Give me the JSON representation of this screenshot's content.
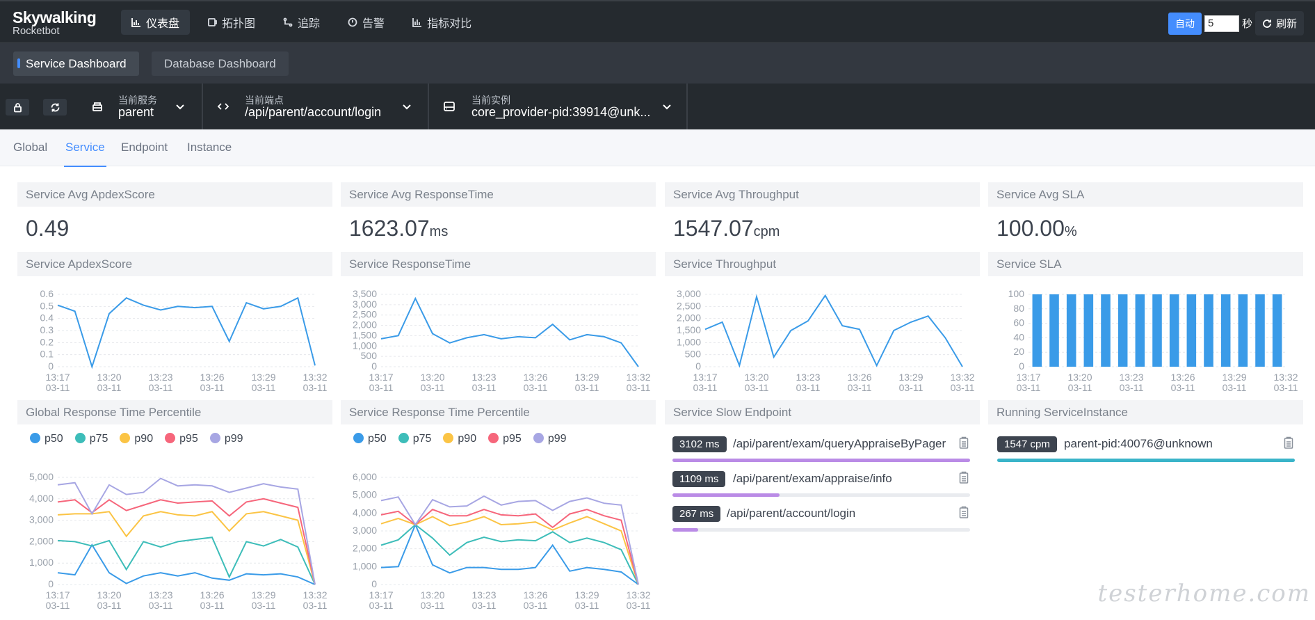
{
  "app": {
    "name": "Skywalking",
    "sub": "Rocketbot"
  },
  "nav": [
    {
      "label": "仪表盘",
      "icon": "dashboard-icon",
      "active": true
    },
    {
      "label": "拓扑图",
      "icon": "topology-icon"
    },
    {
      "label": "追踪",
      "icon": "trace-icon"
    },
    {
      "label": "告警",
      "icon": "alarm-icon"
    },
    {
      "label": "指标对比",
      "icon": "compare-icon"
    }
  ],
  "topright": {
    "auto_label": "自动",
    "interval": "5",
    "unit": "秒",
    "refresh_label": "刷新"
  },
  "dashboards": [
    "Service Dashboard",
    "Database Dashboard"
  ],
  "selectors": {
    "service": {
      "label": "当前服务",
      "value": "parent"
    },
    "endpoint": {
      "label": "当前端点",
      "value": "/api/parent/account/login"
    },
    "instance": {
      "label": "当前实例",
      "value": "core_provider-pid:39914@unk..."
    }
  },
  "tabs": [
    "Global",
    "Service",
    "Endpoint",
    "Instance"
  ],
  "active_tab": "Service",
  "stats": [
    {
      "title": "Service Avg ApdexScore",
      "value": "0.49",
      "unit": ""
    },
    {
      "title": "Service Avg ResponseTime",
      "value": "1623.07",
      "unit": "ms"
    },
    {
      "title": "Service Avg Throughput",
      "value": "1547.07",
      "unit": "cpm"
    },
    {
      "title": "Service Avg SLA",
      "value": "100.00",
      "unit": "%"
    }
  ],
  "chart_titles": [
    "Service ApdexScore",
    "Service ResponseTime",
    "Service Throughput",
    "Service SLA",
    "Global Response Time Percentile",
    "Service Response Time Percentile",
    "Service Slow Endpoint",
    "Running ServiceInstance"
  ],
  "time_labels": [
    "13:17",
    "13:20",
    "13:23",
    "13:26",
    "13:29",
    "13:32"
  ],
  "date_label": "03-11",
  "legend": [
    {
      "name": "p50",
      "color": "#3a9be8"
    },
    {
      "name": "p75",
      "color": "#3dbdb9"
    },
    {
      "name": "p90",
      "color": "#fbc445"
    },
    {
      "name": "p95",
      "color": "#f6667b"
    },
    {
      "name": "p99",
      "color": "#a7a6e3"
    }
  ],
  "chart_data": [
    {
      "type": "line",
      "title": "Service ApdexScore",
      "ylim": [
        0,
        0.6
      ],
      "yticks": [
        "0.6",
        "0.5",
        "0.4",
        "0.3",
        "0.2",
        "0.1",
        "0"
      ],
      "series": [
        {
          "color": "#3a9be8",
          "values": [
            0.51,
            0.46,
            0.0,
            0.44,
            0.57,
            0.51,
            0.47,
            0.5,
            0.49,
            0.5,
            0.21,
            0.53,
            0.48,
            0.5,
            0.57,
            0.01
          ]
        }
      ]
    },
    {
      "type": "line",
      "title": "Service ResponseTime",
      "ylim": [
        0,
        3500
      ],
      "yticks": [
        "3,500",
        "3,000",
        "2,500",
        "2,000",
        "1,500",
        "1,000",
        "500",
        "0"
      ],
      "series": [
        {
          "color": "#3a9be8",
          "values": [
            1350,
            1500,
            3300,
            1600,
            1150,
            1400,
            1550,
            1350,
            1450,
            1400,
            2050,
            1300,
            1550,
            1450,
            1150,
            0
          ]
        }
      ]
    },
    {
      "type": "line",
      "title": "Service Throughput",
      "ylim": [
        0,
        3000
      ],
      "yticks": [
        "3,000",
        "2,500",
        "2,000",
        "1,500",
        "1,000",
        "500",
        "0"
      ],
      "series": [
        {
          "color": "#3a9be8",
          "values": [
            1550,
            1850,
            50,
            2900,
            400,
            1500,
            1900,
            2950,
            1700,
            1550,
            50,
            1500,
            1850,
            2100,
            1200,
            0
          ]
        }
      ]
    },
    {
      "type": "bar",
      "title": "Service SLA",
      "ylim": [
        0,
        100
      ],
      "yticks": [
        "100",
        "80",
        "60",
        "40",
        "20",
        "0"
      ],
      "series": [
        {
          "color": "#3a9be8",
          "values": [
            100,
            100,
            100,
            100,
            100,
            100,
            100,
            100,
            100,
            100,
            100,
            100,
            100,
            100,
            100
          ]
        }
      ]
    },
    {
      "type": "line",
      "title": "Global Response Time Percentile",
      "ylim": [
        0,
        5000
      ],
      "yticks": [
        "5,000",
        "4,000",
        "3,000",
        "2,000",
        "1,000",
        "0"
      ],
      "series": [
        {
          "name": "p50",
          "color": "#3a9be8",
          "values": [
            550,
            450,
            1850,
            550,
            50,
            400,
            550,
            400,
            550,
            300,
            200,
            500,
            450,
            500,
            350,
            0
          ]
        },
        {
          "name": "p75",
          "color": "#3dbdb9",
          "values": [
            2050,
            2000,
            1800,
            2050,
            700,
            2000,
            1750,
            2000,
            2100,
            2200,
            350,
            2000,
            1800,
            2100,
            1750,
            0
          ]
        },
        {
          "name": "p90",
          "color": "#fbc445",
          "values": [
            3250,
            3300,
            3300,
            3400,
            2250,
            3200,
            3400,
            3250,
            3200,
            3400,
            2500,
            3300,
            3400,
            3200,
            3000,
            0
          ]
        },
        {
          "name": "p95",
          "color": "#f6667b",
          "values": [
            3850,
            3950,
            3350,
            3950,
            3450,
            3700,
            3950,
            3800,
            3850,
            3900,
            3200,
            3850,
            4000,
            3800,
            3600,
            0
          ]
        },
        {
          "name": "p99",
          "color": "#a7a6e3",
          "values": [
            4650,
            4750,
            3300,
            4650,
            4200,
            4300,
            4950,
            4600,
            4650,
            4600,
            4300,
            4500,
            4700,
            4550,
            4450,
            0
          ]
        }
      ]
    },
    {
      "type": "line",
      "title": "Service Response Time Percentile",
      "ylim": [
        0,
        6000
      ],
      "yticks": [
        "6,000",
        "5,000",
        "4,000",
        "3,000",
        "2,000",
        "1,000",
        "0"
      ],
      "series": [
        {
          "name": "p50",
          "color": "#3a9be8",
          "values": [
            950,
            1000,
            3350,
            1100,
            650,
            950,
            950,
            850,
            850,
            950,
            2200,
            750,
            950,
            850,
            700,
            0
          ]
        },
        {
          "name": "p75",
          "color": "#3dbdb9",
          "values": [
            2200,
            2500,
            3350,
            2600,
            1650,
            2350,
            2650,
            2400,
            2500,
            2450,
            2950,
            2350,
            2600,
            2350,
            1950,
            0
          ]
        },
        {
          "name": "p90",
          "color": "#fbc445",
          "values": [
            3400,
            3700,
            3350,
            3800,
            3300,
            3500,
            3800,
            3350,
            3400,
            3500,
            3050,
            3450,
            3800,
            3400,
            3000,
            0
          ]
        },
        {
          "name": "p95",
          "color": "#f6667b",
          "values": [
            3900,
            4100,
            3350,
            4200,
            3850,
            3850,
            4200,
            3900,
            3850,
            3950,
            3200,
            3950,
            4200,
            3850,
            3600,
            0
          ]
        },
        {
          "name": "p99",
          "color": "#a7a6e3",
          "values": [
            4700,
            4900,
            3350,
            4750,
            4350,
            4400,
            4950,
            4450,
            4650,
            4700,
            4150,
            4650,
            4850,
            4550,
            4450,
            0
          ]
        }
      ]
    }
  ],
  "slow_endpoints": [
    {
      "ms": "3102 ms",
      "name": "/api/parent/exam/queryAppraiseByPager",
      "ratio": 1.0,
      "color": "#ba8be6"
    },
    {
      "ms": "1109 ms",
      "name": "/api/parent/exam/appraise/info",
      "ratio": 0.36,
      "color": "#ba8be6"
    },
    {
      "ms": "267 ms",
      "name": "/api/parent/account/login",
      "ratio": 0.086,
      "color": "#ba8be6"
    }
  ],
  "instances": [
    {
      "cpm": "1547 cpm",
      "name": "parent-pid:40076@unknown",
      "ratio": 1.0,
      "color": "#3ab4c9"
    }
  ],
  "watermark": "testerhome.com"
}
